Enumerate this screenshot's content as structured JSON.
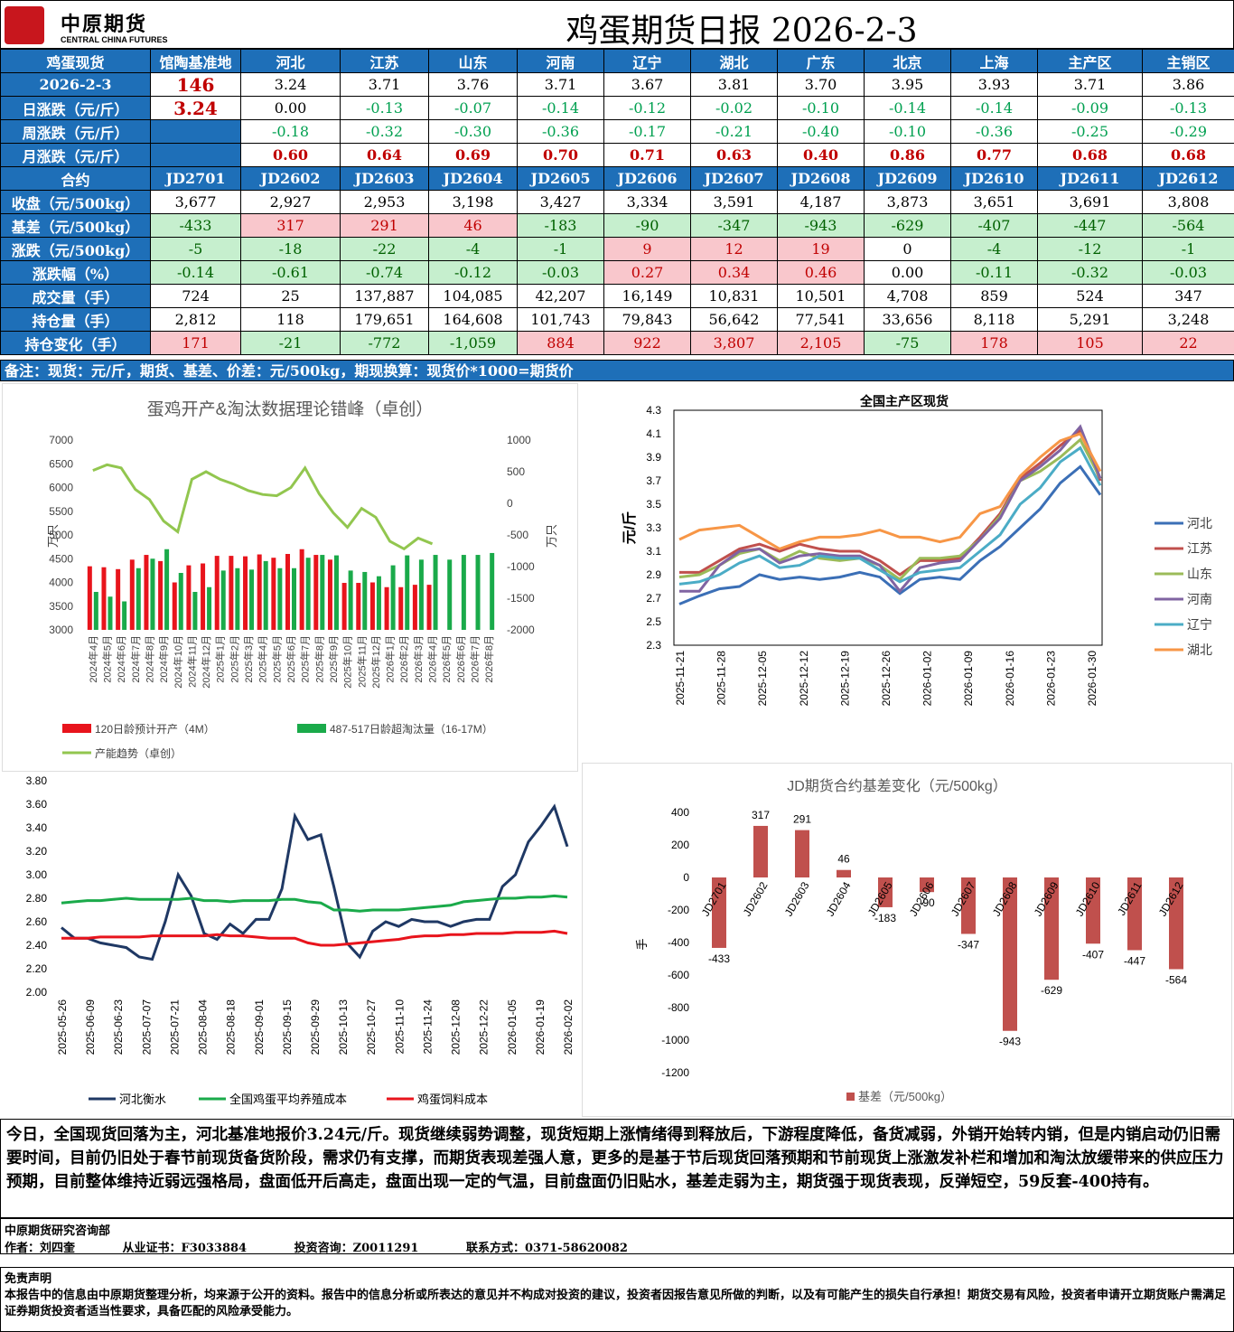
{
  "header": {
    "logo_cn": "中原期货",
    "logo_en": "CENTRAL CHINA FUTURES",
    "title": "鸡蛋期货日报 2026-2-3"
  },
  "spot": {
    "columns": [
      "鸡蛋现货",
      "馆陶基准地",
      "河北",
      "江苏",
      "山东",
      "河南",
      "辽宁",
      "湖北",
      "广东",
      "北京",
      "上海",
      "主产区",
      "主销区"
    ],
    "rows": [
      {
        "label": "2026-2-3",
        "base": "146",
        "cells": [
          "3.24",
          "3.71",
          "3.76",
          "3.71",
          "3.67",
          "3.81",
          "3.70",
          "3.95",
          "3.93",
          "3.71",
          "3.86"
        ]
      },
      {
        "label": "日涨跌（元/斤）",
        "base": "3.24",
        "cells": [
          "0.00",
          "-0.13",
          "-0.07",
          "-0.14",
          "-0.12",
          "-0.02",
          "-0.10",
          "-0.14",
          "-0.14",
          "-0.09",
          "-0.13"
        ]
      },
      {
        "label": "周涨跌（元/斤）",
        "base": "",
        "cells": [
          "-0.18",
          "-0.32",
          "-0.30",
          "-0.36",
          "-0.17",
          "-0.21",
          "-0.40",
          "-0.10",
          "-0.36",
          "-0.25",
          "-0.29"
        ]
      },
      {
        "label": "月涨跌（元/斤）",
        "base": "",
        "cells": [
          "0.60",
          "0.64",
          "0.69",
          "0.70",
          "0.71",
          "0.63",
          "0.40",
          "0.86",
          "0.77",
          "0.68",
          "0.68"
        ]
      }
    ]
  },
  "futures": {
    "header_label": "合约",
    "contracts": [
      "JD2701",
      "JD2602",
      "JD2603",
      "JD2604",
      "JD2605",
      "JD2606",
      "JD2607",
      "JD2608",
      "JD2609",
      "JD2610",
      "JD2611",
      "JD2612"
    ],
    "rows": [
      {
        "label": "收盘（元/500kg）",
        "cells": [
          "3,677",
          "2,927",
          "2,953",
          "3,198",
          "3,427",
          "3,334",
          "3,591",
          "4,187",
          "3,873",
          "3,651",
          "3,691",
          "3,808"
        ]
      },
      {
        "label": "基差（元/500kg）",
        "cells": [
          "-433",
          "317",
          "291",
          "46",
          "-183",
          "-90",
          "-347",
          "-943",
          "-629",
          "-407",
          "-447",
          "-564"
        ]
      },
      {
        "label": "涨跌（元/500kg）",
        "cells": [
          "-5",
          "-18",
          "-22",
          "-4",
          "-1",
          "9",
          "12",
          "19",
          "0",
          "-4",
          "-12",
          "-1"
        ]
      },
      {
        "label": "涨跌幅（%）",
        "cells": [
          "-0.14",
          "-0.61",
          "-0.74",
          "-0.12",
          "-0.03",
          "0.27",
          "0.34",
          "0.46",
          "0.00",
          "-0.11",
          "-0.32",
          "-0.03"
        ]
      },
      {
        "label": "成交量（手）",
        "cells": [
          "724",
          "25",
          "137,887",
          "104,085",
          "42,207",
          "16,149",
          "10,831",
          "10,501",
          "4,708",
          "859",
          "524",
          "347"
        ]
      },
      {
        "label": "持仓量（手）",
        "cells": [
          "2,812",
          "118",
          "179,651",
          "164,608",
          "101,743",
          "79,843",
          "56,642",
          "77,541",
          "33,656",
          "8,118",
          "5,291",
          "3,248"
        ]
      },
      {
        "label": "持仓变化（手）",
        "cells": [
          "171",
          "-21",
          "-772",
          "-1,059",
          "884",
          "922",
          "3,807",
          "2,105",
          "-75",
          "178",
          "105",
          "22"
        ]
      }
    ]
  },
  "note": "备注：现货：元/斤，期货、基差、价差：元/500kg，期现换算：现货价*1000=期货价",
  "chart_data": [
    {
      "type": "bar",
      "title": "蛋鸡开产&淘汰数据理论错峰（卓创）",
      "ylabel": "万只",
      "ylabel_right": "万只",
      "ylim": [
        3000,
        7000
      ],
      "ylim_right": [
        -2000,
        1000
      ],
      "categories": [
        "2024年4月",
        "2024年5月",
        "2024年6月",
        "2024年7月",
        "2024年8月",
        "2024年9月",
        "2024年10月",
        "2024年11月",
        "2024年12月",
        "2025年1月",
        "2025年2月",
        "2025年3月",
        "2025年4月",
        "2025年5月",
        "2025年6月",
        "2025年7月",
        "2025年8月",
        "2025年9月",
        "2025年10月",
        "2025年11月",
        "2025年12月",
        "2026年1月",
        "2026年2月",
        "2026年3月",
        "2026年4月",
        "2026年5月",
        "2026年6月",
        "2026年7月",
        "2026年8月"
      ],
      "series": [
        {
          "name": "120日龄预计开产（4M）",
          "color": "#e8141c",
          "values": [
            4340,
            4320,
            4280,
            4480,
            4580,
            4450,
            4000,
            4360,
            4400,
            4560,
            4560,
            4550,
            4590,
            4520,
            4600,
            4700,
            4580,
            4480,
            3990,
            3990,
            4000,
            3900,
            3900,
            3950,
            3950,
            null,
            null,
            null,
            null
          ]
        },
        {
          "name": "487-517日龄超淘汰量（16-17M）",
          "color": "#1aaa4a",
          "values": [
            3800,
            3700,
            3600,
            4300,
            4500,
            4700,
            4200,
            3800,
            3900,
            4250,
            4300,
            4270,
            4450,
            4300,
            4300,
            4520,
            4580,
            4570,
            4250,
            4220,
            4130,
            4360,
            4570,
            4480,
            4580,
            4480,
            4580,
            4580,
            4620
          ]
        },
        {
          "name": "产能趋势（卓创）",
          "color": "#92c64f",
          "axis": "right",
          "values": [
            520,
            610,
            560,
            220,
            60,
            -280,
            -450,
            380,
            500,
            380,
            300,
            200,
            140,
            120,
            250,
            560,
            150,
            -150,
            -380,
            -80,
            -220,
            -600,
            -720,
            -550,
            -640,
            null,
            null,
            null,
            null
          ]
        }
      ]
    },
    {
      "type": "line",
      "title": "全国主产区现货",
      "ylabel": "元/斤",
      "ylim": [
        2.3,
        4.3
      ],
      "x_ticks": [
        "2025-11-21",
        "2025-11-28",
        "2025-12-05",
        "2025-12-12",
        "2025-12-19",
        "2025-12-26",
        "2026-01-02",
        "2026-01-09",
        "2026-01-16",
        "2026-01-23",
        "2026-01-30"
      ],
      "series": [
        {
          "name": "河北",
          "color": "#3b6fb6",
          "values": [
            2.65,
            2.72,
            2.78,
            2.8,
            2.9,
            2.86,
            2.88,
            2.86,
            2.88,
            2.92,
            2.88,
            2.74,
            2.86,
            2.88,
            2.86,
            3.02,
            3.14,
            3.3,
            3.46,
            3.68,
            3.82,
            3.58
          ]
        },
        {
          "name": "江苏",
          "color": "#c0504d",
          "values": [
            2.92,
            2.92,
            3.02,
            3.12,
            3.16,
            3.1,
            3.16,
            3.12,
            3.1,
            3.1,
            3.02,
            2.9,
            3.02,
            3.02,
            3.04,
            3.22,
            3.42,
            3.72,
            3.85,
            4.0,
            4.13,
            3.7
          ]
        },
        {
          "name": "山东",
          "color": "#9bbb59",
          "values": [
            2.88,
            2.9,
            2.98,
            3.08,
            3.12,
            3.02,
            3.1,
            3.04,
            3.02,
            3.04,
            2.98,
            2.86,
            3.04,
            3.04,
            3.06,
            3.2,
            3.4,
            3.7,
            3.78,
            3.9,
            4.05,
            3.72
          ]
        },
        {
          "name": "河南",
          "color": "#8064a2",
          "values": [
            2.76,
            2.76,
            2.98,
            3.1,
            3.12,
            3.0,
            3.06,
            3.08,
            3.06,
            3.06,
            2.98,
            2.76,
            2.96,
            3.0,
            3.02,
            3.2,
            3.38,
            3.7,
            3.82,
            3.96,
            4.16,
            3.72
          ]
        },
        {
          "name": "辽宁",
          "color": "#4bacc6",
          "values": [
            2.82,
            2.84,
            2.9,
            3.0,
            3.06,
            2.96,
            2.98,
            3.06,
            3.04,
            3.04,
            2.94,
            2.84,
            2.92,
            2.94,
            2.96,
            3.1,
            3.24,
            3.5,
            3.64,
            3.86,
            3.98,
            3.66
          ]
        },
        {
          "name": "湖北",
          "color": "#f79646",
          "values": [
            3.2,
            3.28,
            3.3,
            3.32,
            3.22,
            3.12,
            3.18,
            3.22,
            3.22,
            3.24,
            3.28,
            3.22,
            3.22,
            3.18,
            3.22,
            3.42,
            3.48,
            3.74,
            3.9,
            4.04,
            4.1,
            3.78
          ]
        }
      ]
    },
    {
      "type": "line",
      "ylim": [
        2.0,
        3.8
      ],
      "x_ticks": [
        "2025-05-26",
        "2025-06-09",
        "2025-06-23",
        "2025-07-07",
        "2025-07-21",
        "2025-08-04",
        "2025-08-18",
        "2025-09-01",
        "2025-09-15",
        "2025-09-29",
        "2025-10-13",
        "2025-10-27",
        "2025-11-10",
        "2025-11-24",
        "2025-12-08",
        "2025-12-22",
        "2026-01-05",
        "2026-01-19",
        "2026-02-02"
      ],
      "series": [
        {
          "name": "河北衡水",
          "color": "#1f3864",
          "values": [
            2.55,
            2.46,
            2.46,
            2.42,
            2.4,
            2.38,
            2.3,
            2.28,
            2.6,
            3.0,
            2.82,
            2.5,
            2.45,
            2.58,
            2.5,
            2.62,
            2.62,
            2.88,
            3.5,
            3.3,
            3.34,
            2.9,
            2.42,
            2.3,
            2.52,
            2.6,
            2.56,
            2.62,
            2.6,
            2.6,
            2.56,
            2.6,
            2.62,
            2.62,
            2.9,
            3.0,
            3.28,
            3.42,
            3.58,
            3.24
          ]
        },
        {
          "name": "全国鸡蛋平均养殖成本",
          "color": "#1aaa4a",
          "values": [
            2.76,
            2.77,
            2.78,
            2.78,
            2.79,
            2.8,
            2.79,
            2.79,
            2.79,
            2.79,
            2.8,
            2.78,
            2.78,
            2.77,
            2.78,
            2.78,
            2.78,
            2.79,
            2.79,
            2.77,
            2.76,
            2.7,
            2.7,
            2.69,
            2.7,
            2.7,
            2.7,
            2.71,
            2.72,
            2.73,
            2.74,
            2.77,
            2.78,
            2.79,
            2.8,
            2.8,
            2.81,
            2.81,
            2.82,
            2.81
          ]
        },
        {
          "name": "鸡蛋饲料成本",
          "color": "#e8141c",
          "values": [
            2.46,
            2.46,
            2.46,
            2.47,
            2.47,
            2.47,
            2.47,
            2.48,
            2.48,
            2.48,
            2.48,
            2.48,
            2.49,
            2.48,
            2.48,
            2.47,
            2.46,
            2.46,
            2.46,
            2.42,
            2.4,
            2.4,
            2.41,
            2.42,
            2.43,
            2.44,
            2.45,
            2.47,
            2.48,
            2.48,
            2.49,
            2.49,
            2.5,
            2.5,
            2.5,
            2.51,
            2.51,
            2.51,
            2.52,
            2.5
          ]
        }
      ]
    },
    {
      "type": "bar",
      "title": "JD期货合约基差变化（元/500kg）",
      "ylabel": "手",
      "ylim": [
        -1200,
        400
      ],
      "categories": [
        "JD2701",
        "JD2602",
        "JD2603",
        "JD2604",
        "JD2605",
        "JD2606",
        "JD2607",
        "JD2608",
        "JD2609",
        "JD2610",
        "JD2611",
        "JD2612"
      ],
      "series": [
        {
          "name": "基差（元/500kg）",
          "color": "#c0504d",
          "values": [
            -433,
            317,
            291,
            46,
            -183,
            -90,
            -347,
            -943,
            -629,
            -407,
            -447,
            -564
          ]
        }
      ]
    }
  ],
  "summary": "今日，全国现货回落为主，河北基准地报价3.24元/斤。现货继续弱势调整，现货短期上涨情绪得到释放后，下游程度降低，备货减弱，外销开始转内销，但是内销启动仍旧需要时间，目前仍旧处于春节前现货备货阶段，需求仍有支撑，而期货表现差强人意，更多的是基于节后现货回落预期和节前现货上涨激发补栏和增加和淘汰放缓带来的供应压力预期，目前整体维持近弱远强格局，盘面低开后高走，盘面出现一定的气温，目前盘面仍旧贴水，基差走弱为主，期货强于现货表现，反弹短空，59反套-400持有。",
  "footer": {
    "dept": "中原期货研究咨询部",
    "author": "作者：刘四奎",
    "cert": "从业证书：F3033884",
    "consult": "投资咨询：Z0011291",
    "contact": "联系方式：0371-58620082"
  },
  "disclaimer": {
    "title": "免责声明",
    "text": "本报告中的信息由中原期货整理分析，均来源于公开的资料。报告中的信息分析或所表达的意见并不构成对投资的建议，投资者因报告意见所做的判断，以及有可能产生的损失自行承担！期货交易有风险，投资者申请开立期货账户需满足证券期货投资者适当性要求，具备匹配的风险承受能力。"
  }
}
